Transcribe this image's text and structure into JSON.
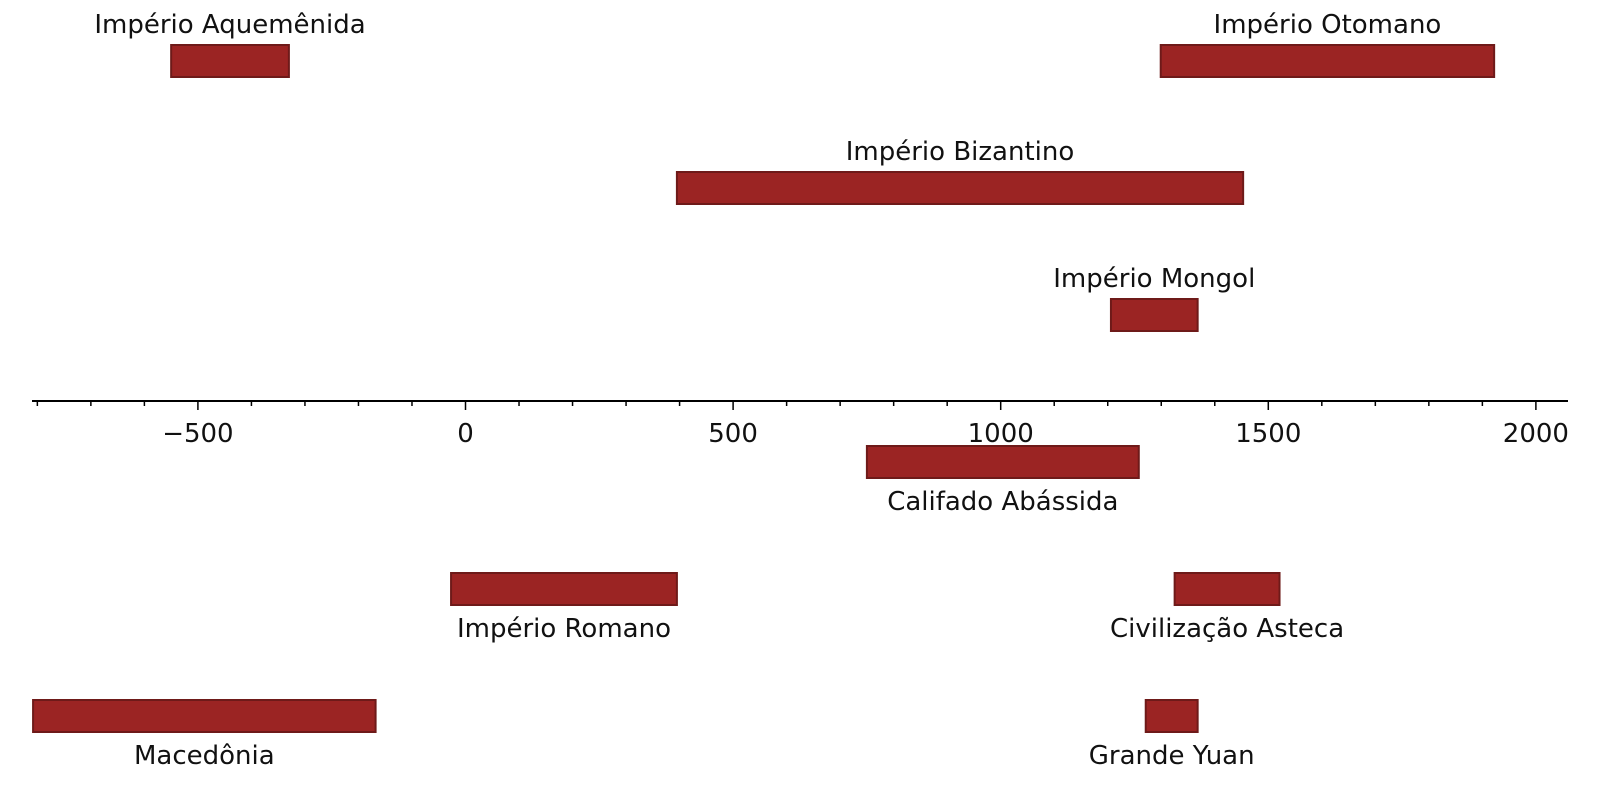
{
  "chart_data": {
    "type": "bar",
    "xlim": [
      -810,
      2060
    ],
    "grid": false,
    "major_ticks": [
      -500,
      0,
      500,
      1000,
      1500,
      2000
    ],
    "tick_labels": [
      "−500",
      "0",
      "500",
      "1000",
      "1500",
      "2000"
    ],
    "bar_color": "#9b2423",
    "rows": [
      {
        "row": 3,
        "name": "Império Aquemênida",
        "start": -550,
        "end": -330
      },
      {
        "row": 3,
        "name": "Império Otomano",
        "start": 1299,
        "end": 1922
      },
      {
        "row": 2,
        "name": "Império Bizantino",
        "start": 395,
        "end": 1453
      },
      {
        "row": 1,
        "name": "Império Mongol",
        "start": 1206,
        "end": 1368
      },
      {
        "row": -1,
        "name": "Califado Abássida",
        "start": 750,
        "end": 1258
      },
      {
        "row": -2,
        "name": "Império Romano",
        "start": -27,
        "end": 395
      },
      {
        "row": -2,
        "name": "Civilização Asteca",
        "start": 1325,
        "end": 1521
      },
      {
        "row": -3,
        "name": "Macedônia",
        "start": -808,
        "end": -168
      },
      {
        "row": -3,
        "name": "Grande Yuan",
        "start": 1271,
        "end": 1368
      }
    ]
  }
}
